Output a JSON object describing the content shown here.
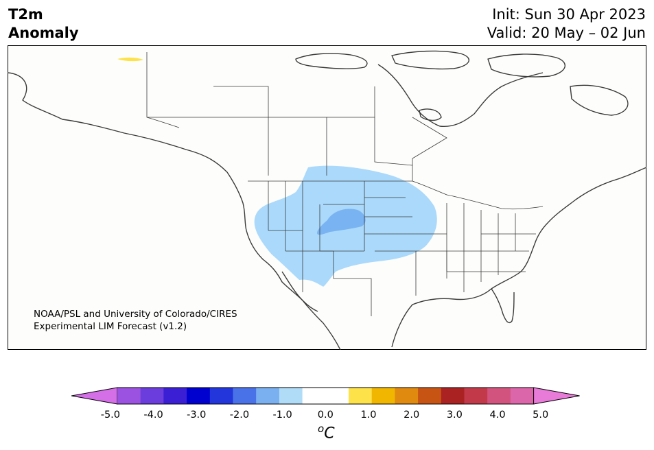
{
  "header": {
    "variable": "T2m",
    "quantity": "Anomaly",
    "init": "Init: Sun 30 Apr 2023",
    "valid": "Valid: 20 May – 02 Jun"
  },
  "credit": {
    "line1": "NOAA/PSL and University of Colorado/CIRES",
    "line2": "Experimental LIM Forecast (v1.2)"
  },
  "colorbar": {
    "unit_base": "C",
    "unit_super": "o",
    "ticks": [
      "-5.0",
      "-4.0",
      "-3.0",
      "-2.0",
      "-1.0",
      "0.0",
      "1.0",
      "2.0",
      "3.0",
      "4.0",
      "5.0"
    ],
    "colors": [
      "#d46fe8",
      "#9b52e0",
      "#6a3ddc",
      "#3a1fd4",
      "#0000cf",
      "#2236dc",
      "#4a72e8",
      "#7ab0f0",
      "#b0dcf8",
      "#ffffff",
      "#ffffff",
      "#fde24a",
      "#f0b600",
      "#e08a10",
      "#c85414",
      "#aa2222",
      "#c23a4a",
      "#d2547e",
      "#dc66aa",
      "#e87ad8"
    ]
  },
  "map": {
    "region": "North America",
    "anomaly_areas": [
      {
        "name": "western-us-cool-anomaly",
        "color": "#aad9fb"
      },
      {
        "name": "central-rockies-cooler-anomaly",
        "color": "#79b3f2"
      },
      {
        "name": "alaska-north-slope-warm-anomaly",
        "color": "#fde24a"
      }
    ]
  }
}
